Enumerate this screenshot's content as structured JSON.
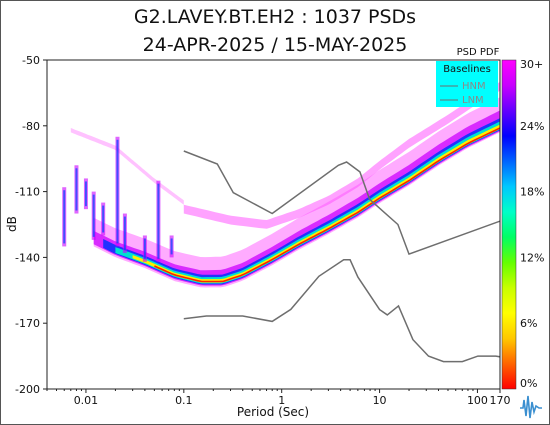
{
  "title_line1": "G2.LAVEY.BT.EH2 : 1037 PSDs",
  "title_line2": "24-APR-2025 / 15-MAY-2025",
  "colorbar_title": "PSD PDF",
  "colorbar_ticks": [
    "30+",
    "24%",
    "18%",
    "12%",
    "6%",
    "0%"
  ],
  "colorbar_colors": [
    "#ff00ff",
    "#c800ff",
    "#6400ff",
    "#0000ff",
    "#0064ff",
    "#00c8ff",
    "#00ffc8",
    "#00ff64",
    "#64ff00",
    "#c8ff00",
    "#ffff00",
    "#ffc800",
    "#ff6400",
    "#ff0000"
  ],
  "legend": {
    "title": "Baselines",
    "items": [
      "HNM",
      "LNM"
    ],
    "bg": "#00ffff"
  },
  "logo": "seismic-logo-icon",
  "chart_data": {
    "type": "heatmap",
    "xlabel": "Period (Sec)",
    "ylabel": "dB",
    "x_scale": "log",
    "xlim": [
      0.004,
      170
    ],
    "ylim": [
      -200,
      -50
    ],
    "x_ticks": [
      {
        "v": 0.01,
        "label": "0.01"
      },
      {
        "v": 0.1,
        "label": "0.1"
      },
      {
        "v": 1,
        "label": "1"
      },
      {
        "v": 10,
        "label": "10"
      },
      {
        "v": 100,
        "label": "100"
      },
      {
        "v": 170,
        "label": "170"
      }
    ],
    "y_ticks": [
      {
        "v": -50,
        "label": "-50"
      },
      {
        "v": -80,
        "label": "-80"
      },
      {
        "v": -110,
        "label": "-110"
      },
      {
        "v": -140,
        "label": "-140"
      },
      {
        "v": -170,
        "label": "-170"
      },
      {
        "v": -200,
        "label": "-200"
      }
    ],
    "series": [
      {
        "name": "HNM",
        "color": "#6e6e6e",
        "points": [
          [
            0.1,
            -91.5
          ],
          [
            0.22,
            -97.4
          ],
          [
            0.32,
            -110.5
          ],
          [
            0.8,
            -120
          ],
          [
            3.8,
            -98
          ],
          [
            4.6,
            -96.5
          ],
          [
            6.3,
            -101
          ],
          [
            7.9,
            -113.5
          ],
          [
            15.4,
            -125
          ],
          [
            20,
            -138.5
          ],
          [
            354.8,
            -118.3
          ]
        ]
      },
      {
        "name": "LNM",
        "color": "#6e6e6e",
        "points": [
          [
            0.1,
            -168
          ],
          [
            0.17,
            -166.7
          ],
          [
            0.4,
            -166.7
          ],
          [
            0.8,
            -169.2
          ],
          [
            1.24,
            -163.7
          ],
          [
            2.4,
            -148.6
          ],
          [
            4.3,
            -141.1
          ],
          [
            5,
            -141.1
          ],
          [
            6,
            -149
          ],
          [
            10,
            -163.8
          ],
          [
            12,
            -166.2
          ],
          [
            15.6,
            -162.1
          ],
          [
            21.9,
            -177.5
          ],
          [
            31.6,
            -185
          ],
          [
            45,
            -187.5
          ],
          [
            70,
            -187.5
          ],
          [
            101,
            -185
          ],
          [
            154,
            -185
          ],
          [
            328,
            -187.5
          ]
        ]
      },
      {
        "name": "PDF mode (high density ridge)",
        "color": "#ff0000",
        "points": [
          [
            0.012,
            -132
          ],
          [
            0.02,
            -137
          ],
          [
            0.04,
            -142
          ],
          [
            0.08,
            -148
          ],
          [
            0.15,
            -151
          ],
          [
            0.25,
            -151
          ],
          [
            0.4,
            -148
          ],
          [
            0.8,
            -141
          ],
          [
            1.5,
            -134
          ],
          [
            3,
            -127
          ],
          [
            6,
            -119.5
          ],
          [
            10,
            -113
          ],
          [
            20,
            -105
          ],
          [
            40,
            -96
          ],
          [
            80,
            -88
          ],
          [
            170,
            -81
          ]
        ]
      },
      {
        "name": "PDF secondary band",
        "color": "#ff00ff",
        "points": [
          [
            0.1,
            -118
          ],
          [
            0.3,
            -123
          ],
          [
            0.7,
            -125
          ],
          [
            1.5,
            -120
          ],
          [
            3,
            -114
          ],
          [
            6,
            -106
          ],
          [
            10,
            -98
          ],
          [
            20,
            -88
          ],
          [
            50,
            -77
          ],
          [
            100,
            -68
          ],
          [
            170,
            -62
          ]
        ]
      }
    ]
  }
}
